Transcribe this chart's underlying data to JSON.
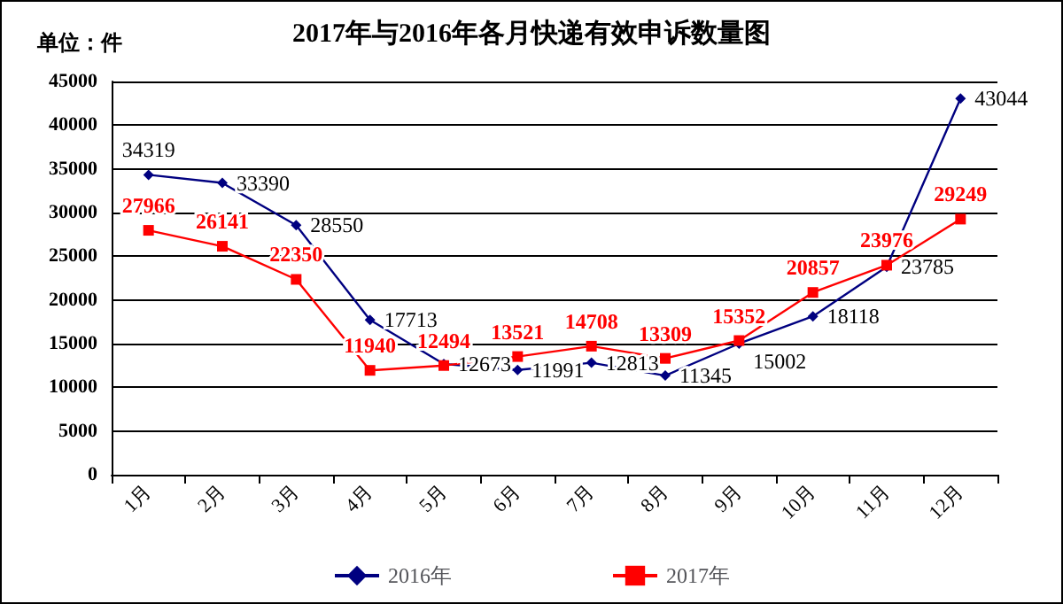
{
  "chart_data": {
    "type": "line",
    "title": "2017年与2016年各月快递有效申诉数量图",
    "ylabel": "单位：件",
    "categories": [
      "1月",
      "2月",
      "3月",
      "4月",
      "5月",
      "6月",
      "7月",
      "8月",
      "9月",
      "10月",
      "11月",
      "12月"
    ],
    "series": [
      {
        "name": "2016年",
        "color": "#000080",
        "marker": "diamond",
        "values": [
          34319,
          33390,
          28550,
          17713,
          12673,
          11991,
          12813,
          11345,
          15002,
          18118,
          23785,
          43044
        ]
      },
      {
        "name": "2017年",
        "color": "#ff0000",
        "marker": "square",
        "values": [
          27966,
          26141,
          22350,
          11940,
          12494,
          13521,
          14708,
          13309,
          15352,
          20857,
          23976,
          29249
        ]
      }
    ],
    "ylim": [
      0,
      45000
    ],
    "yticks": [
      0,
      5000,
      10000,
      15000,
      20000,
      25000,
      30000,
      35000,
      40000,
      45000
    ],
    "grid": "y",
    "legend": "bottom",
    "data_labels": true
  }
}
